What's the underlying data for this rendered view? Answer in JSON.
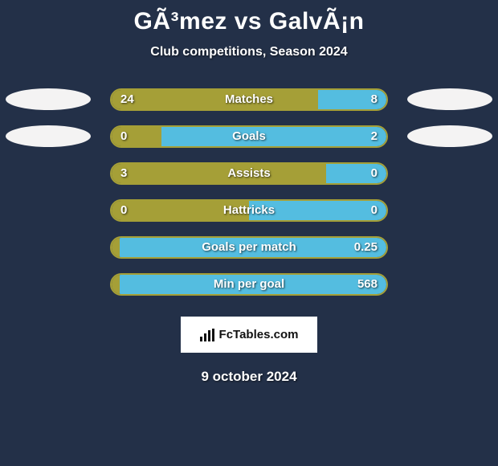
{
  "colors": {
    "background": "#233048",
    "left": "#a59f37",
    "right": "#54bde0",
    "ellipse": "#f4f3f3",
    "text": "#ffffff"
  },
  "title": "GÃ³mez vs GalvÃ¡n",
  "subtitle": "Club competitions, Season 2024",
  "badge": "FcTables.com",
  "date": "9 october 2024",
  "bar_inner_width": 342,
  "rows": [
    {
      "label": "Matches",
      "left_val": "24",
      "right_val": "8",
      "left_pct": 75,
      "right_pct": 25,
      "ellipse_left": true,
      "ellipse_right": true
    },
    {
      "label": "Goals",
      "left_val": "0",
      "right_val": "2",
      "left_pct": 18,
      "right_pct": 82,
      "ellipse_left": true,
      "ellipse_right": true
    },
    {
      "label": "Assists",
      "left_val": "3",
      "right_val": "0",
      "left_pct": 78,
      "right_pct": 22,
      "ellipse_left": false,
      "ellipse_right": false
    },
    {
      "label": "Hattricks",
      "left_val": "0",
      "right_val": "0",
      "left_pct": 50,
      "right_pct": 50,
      "ellipse_left": false,
      "ellipse_right": false
    },
    {
      "label": "Goals per match",
      "left_val": "",
      "right_val": "0.25",
      "left_pct": 3,
      "right_pct": 97,
      "ellipse_left": false,
      "ellipse_right": false
    },
    {
      "label": "Min per goal",
      "left_val": "",
      "right_val": "568",
      "left_pct": 3,
      "right_pct": 97,
      "ellipse_left": false,
      "ellipse_right": false
    }
  ]
}
